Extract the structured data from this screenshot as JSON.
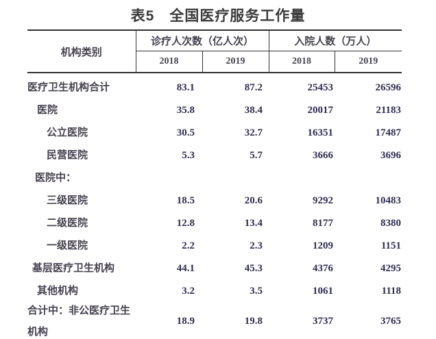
{
  "page_title": "表5　全国医疗服务工作量",
  "table": {
    "org_col_header": "机构类别",
    "col_groups": [
      {
        "label": "诊疗人次数（亿人次）",
        "years": [
          "2018",
          "2019"
        ]
      },
      {
        "label": "入院人数（万人）",
        "years": [
          "2018",
          "2019"
        ]
      }
    ],
    "rows": [
      {
        "label": "医疗卫生机构合计",
        "indent": 0,
        "values": [
          "83.1",
          "87.2",
          "25453",
          "26596"
        ]
      },
      {
        "label": "医院",
        "indent": 1,
        "values": [
          "35.8",
          "38.4",
          "20017",
          "21183"
        ]
      },
      {
        "label": "公立医院",
        "indent": 2,
        "values": [
          "30.5",
          "32.7",
          "16351",
          "17487"
        ]
      },
      {
        "label": "民营医院",
        "indent": 2,
        "values": [
          "5.3",
          "5.7",
          "3666",
          "3696"
        ]
      },
      {
        "label": "医院中：",
        "indent": 0.75,
        "values": [
          "",
          "",
          "",
          ""
        ]
      },
      {
        "label": "三级医院",
        "indent": 2,
        "values": [
          "18.5",
          "20.6",
          "9292",
          "10483"
        ]
      },
      {
        "label": "二级医院",
        "indent": 2,
        "values": [
          "12.8",
          "13.4",
          "8177",
          "8380"
        ]
      },
      {
        "label": "一级医院",
        "indent": 2,
        "values": [
          "2.2",
          "2.3",
          "1209",
          "1151"
        ]
      },
      {
        "label": "基层医疗卫生机构",
        "indent": 0.5,
        "values": [
          "44.1",
          "45.3",
          "4376",
          "4295"
        ]
      },
      {
        "label": "其他机构",
        "indent": 1,
        "values": [
          "3.2",
          "3.5",
          "1061",
          "1118"
        ]
      },
      {
        "label": "合计中：非公医疗卫生机构",
        "indent": 0,
        "values": [
          "18.9",
          "19.8",
          "3737",
          "3765"
        ]
      }
    ]
  },
  "colors": {
    "title_ink": "#3a3a3a",
    "label_ink": "#45414e",
    "number_ink": "#2e2c4f",
    "rule": "#2f2f2f",
    "bg": "#ffffff"
  }
}
